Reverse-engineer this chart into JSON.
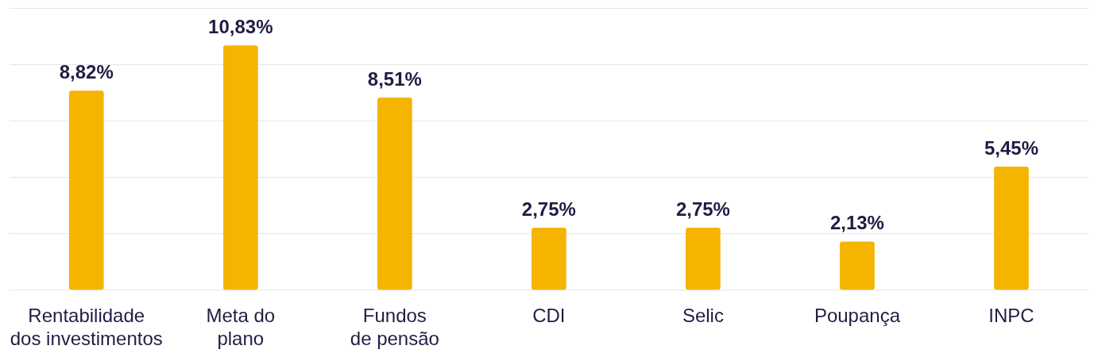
{
  "chart_data": {
    "type": "bar",
    "categories": [
      "Rentabilidade\ndos investimentos",
      "Meta do\nplano",
      "Fundos\nde pensão",
      "CDI",
      "Selic",
      "Poupança",
      "INPC"
    ],
    "values": [
      8.82,
      10.83,
      8.51,
      2.75,
      2.75,
      2.13,
      5.45
    ],
    "value_labels": [
      "8,82%",
      "10,83%",
      "8,51%",
      "2,75%",
      "2,75%",
      "2,13%",
      "5,45%"
    ],
    "color": "#f5b400",
    "ylim": [
      0,
      12.5
    ],
    "yticks": [
      {
        "value": 0,
        "label": null
      },
      {
        "value": 2.5,
        "label": null
      },
      {
        "value": 5,
        "label": null
      },
      {
        "value": 7.5,
        "label": null
      },
      {
        "value": 10,
        "label": null
      },
      {
        "value": 12.5,
        "label": null
      }
    ],
    "grid": "y",
    "legend": false,
    "tick_labels": "x"
  }
}
